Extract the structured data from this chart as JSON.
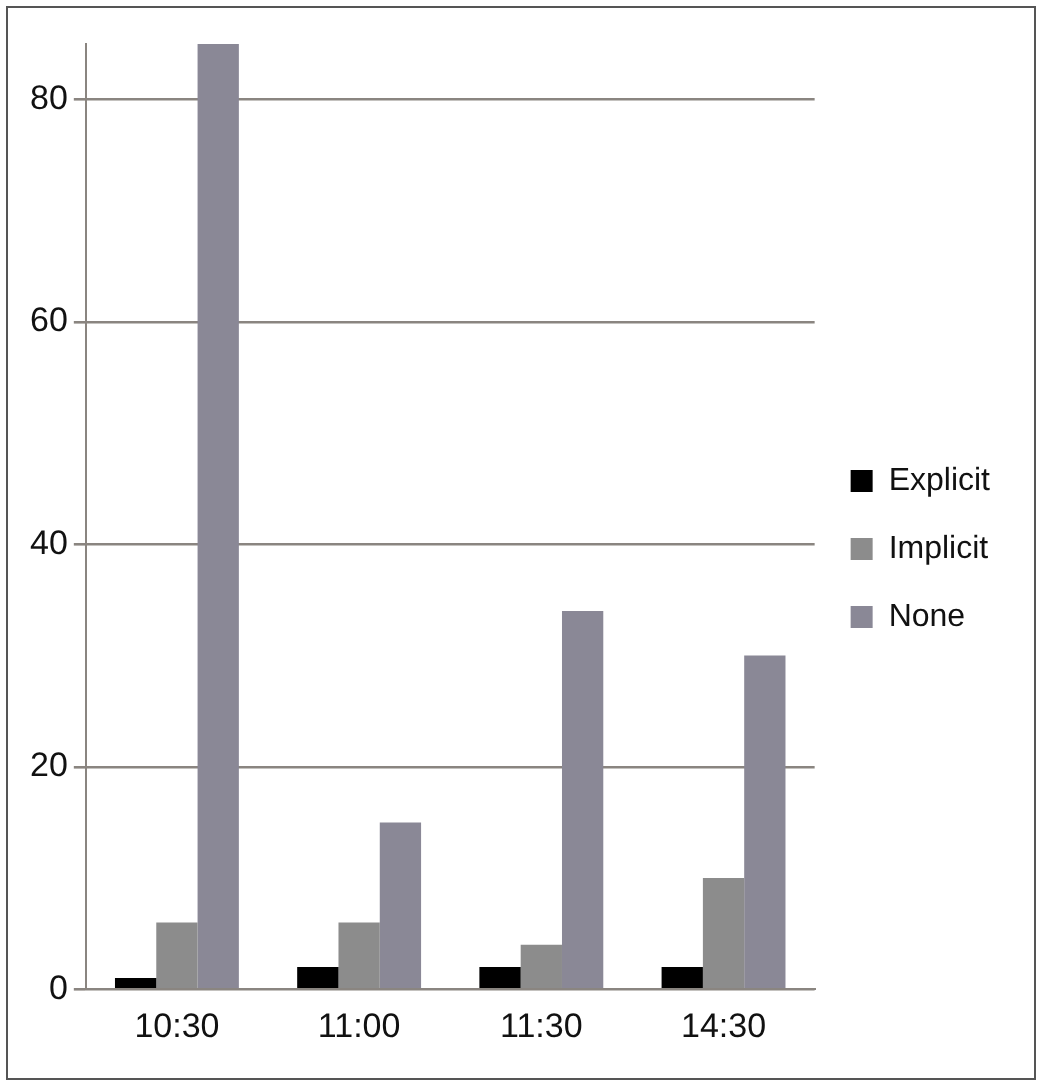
{
  "chart_data": {
    "type": "bar",
    "categories": [
      "10:30",
      "11:00",
      "11:30",
      "14:30"
    ],
    "series": [
      {
        "name": "Explicit",
        "color": "#000000",
        "values": [
          1,
          2,
          2,
          2
        ]
      },
      {
        "name": "Implicit",
        "color": "#8c8c8c",
        "values": [
          6,
          6,
          4,
          10
        ]
      },
      {
        "name": "None",
        "color": "#8a8896",
        "values": [
          85,
          15,
          34,
          30
        ]
      }
    ],
    "ylim": [
      0,
      85
    ],
    "yticks": [
      0,
      20,
      40,
      60,
      80
    ],
    "grid": "y",
    "legend": "right"
  }
}
